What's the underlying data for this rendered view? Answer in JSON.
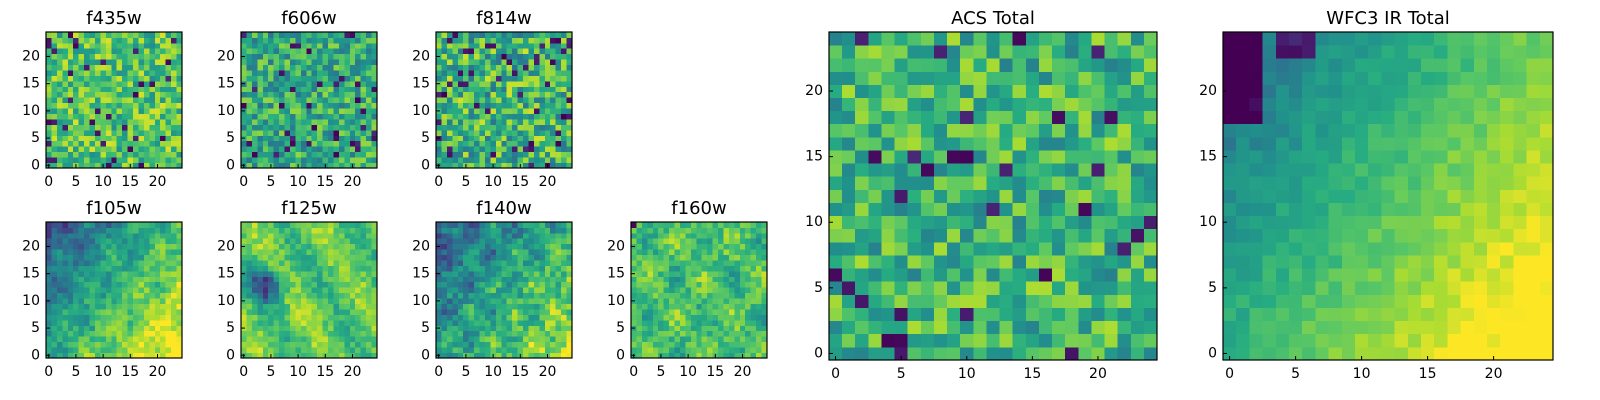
{
  "chart_data": [
    {
      "type": "heatmap",
      "title": "f435w",
      "nrows": 25,
      "ncols": 25,
      "xticks": [
        0,
        5,
        10,
        15,
        20
      ],
      "yticks": [
        0,
        5,
        10,
        15,
        20
      ],
      "xlim": [
        0,
        25
      ],
      "ylim": [
        0,
        25
      ],
      "origin": "lower",
      "colormap": "viridis",
      "pattern": "uniform noise, mostly green-yellow with scattered dark pixels",
      "seed": 11
    },
    {
      "type": "heatmap",
      "title": "f606w",
      "nrows": 25,
      "ncols": 25,
      "xticks": [
        0,
        5,
        10,
        15,
        20
      ],
      "yticks": [
        0,
        5,
        10,
        15,
        20
      ],
      "xlim": [
        0,
        25
      ],
      "ylim": [
        0,
        25
      ],
      "origin": "lower",
      "colormap": "viridis",
      "pattern": "uniform noise, mostly teal-green",
      "seed": 22
    },
    {
      "type": "heatmap",
      "title": "f814w",
      "nrows": 25,
      "ncols": 25,
      "xticks": [
        0,
        5,
        10,
        15,
        20
      ],
      "yticks": [
        0,
        5,
        10,
        15,
        20
      ],
      "xlim": [
        0,
        25
      ],
      "ylim": [
        0,
        25
      ],
      "origin": "lower",
      "colormap": "viridis",
      "pattern": "uniform noise, green with many dark pixels",
      "seed": 33
    },
    {
      "type": "heatmap",
      "title": "f105w",
      "nrows": 25,
      "ncols": 25,
      "xticks": [
        0,
        5,
        10,
        15,
        20
      ],
      "yticks": [
        0,
        5,
        10,
        15,
        20
      ],
      "xlim": [
        0,
        25
      ],
      "ylim": [
        0,
        25
      ],
      "origin": "lower",
      "colormap": "viridis",
      "pattern": "smooth gradient, dark upper-left, bright lower-right",
      "seed": 44
    },
    {
      "type": "heatmap",
      "title": "f125w",
      "nrows": 25,
      "ncols": 25,
      "xticks": [
        0,
        5,
        10,
        15,
        20
      ],
      "yticks": [
        0,
        5,
        10,
        15,
        20
      ],
      "xlim": [
        0,
        25
      ],
      "ylim": [
        0,
        25
      ],
      "origin": "lower",
      "colormap": "viridis",
      "pattern": "smooth, dark blob left-center near (4,13), bright center",
      "seed": 55
    },
    {
      "type": "heatmap",
      "title": "f140w",
      "nrows": 25,
      "ncols": 25,
      "xticks": [
        0,
        5,
        10,
        15,
        20
      ],
      "yticks": [
        0,
        5,
        10,
        15,
        20
      ],
      "xlim": [
        0,
        25
      ],
      "ylim": [
        0,
        25
      ],
      "origin": "lower",
      "colormap": "viridis",
      "pattern": "smooth, dark upper-left, brighter lower-right",
      "seed": 66
    },
    {
      "type": "heatmap",
      "title": "f160w",
      "nrows": 25,
      "ncols": 25,
      "xticks": [
        0,
        5,
        10,
        15,
        20
      ],
      "yticks": [
        0,
        5,
        10,
        15,
        20
      ],
      "xlim": [
        0,
        25
      ],
      "ylim": [
        0,
        25
      ],
      "origin": "lower",
      "colormap": "viridis",
      "pattern": "smooth, mostly green-yellow with a dark pixel at upper-left",
      "seed": 77
    },
    {
      "type": "heatmap",
      "title": "ACS Total",
      "nrows": 25,
      "ncols": 25,
      "xticks": [
        0,
        5,
        10,
        15,
        20
      ],
      "yticks": [
        0,
        5,
        10,
        15,
        20
      ],
      "xlim": [
        0,
        25
      ],
      "ylim": [
        0,
        25
      ],
      "origin": "lower",
      "colormap": "viridis",
      "pattern": "uniform noise, green-yellow with scattered dark pixels",
      "seed": 88
    },
    {
      "type": "heatmap",
      "title": "WFC3 IR Total",
      "nrows": 25,
      "ncols": 25,
      "xticks": [
        0,
        5,
        10,
        15,
        20
      ],
      "yticks": [
        0,
        5,
        10,
        15,
        20
      ],
      "xlim": [
        0,
        25
      ],
      "ylim": [
        0,
        25
      ],
      "origin": "lower",
      "colormap": "viridis",
      "pattern": "smooth gradient, dark upper-left corner, bright lower-right",
      "seed": 99
    }
  ]
}
